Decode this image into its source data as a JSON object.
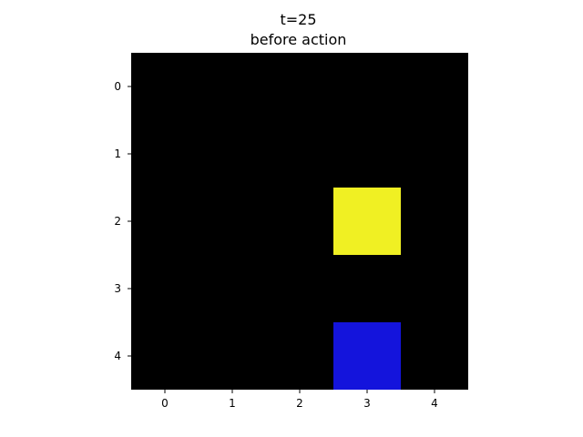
{
  "figure": {
    "title_line1": "t=25",
    "title_line2": "before action"
  },
  "grid": {
    "rows": 5,
    "cols": 5,
    "background_color": "#000000",
    "x_ticks": [
      "0",
      "1",
      "2",
      "3",
      "4"
    ],
    "y_ticks": [
      "0",
      "1",
      "2",
      "3",
      "4"
    ],
    "cells": [
      {
        "row": 2,
        "col": 3,
        "color": "#f0f023",
        "name": "yellow-tile"
      },
      {
        "row": 4,
        "col": 3,
        "color": "#1414dc",
        "name": "blue-tile"
      }
    ]
  }
}
